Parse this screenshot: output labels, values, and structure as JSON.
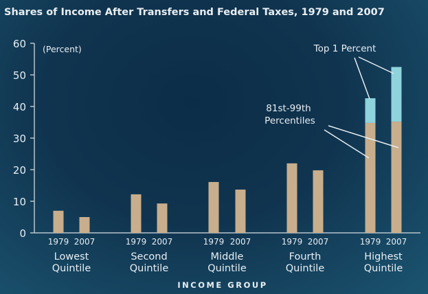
{
  "chart_data": {
    "type": "bar",
    "stacked": true,
    "title": "Shares of Income After Transfers and Federal Taxes, 1979 and 2007",
    "ylabel": "(Percent)",
    "xlabel": "INCOME GROUP",
    "ylim": [
      0,
      60
    ],
    "yticks": [
      0,
      10,
      20,
      30,
      40,
      50,
      60
    ],
    "grid": false,
    "groups": [
      "Lowest Quintile",
      "Second Quintile",
      "Middle Quintile",
      "Fourth Quintile",
      "Highest Quintile"
    ],
    "group_lines": [
      [
        "Lowest",
        "Quintile"
      ],
      [
        "Second",
        "Quintile"
      ],
      [
        "Middle",
        "Quintile"
      ],
      [
        "Fourth",
        "Quintile"
      ],
      [
        "Highest",
        "Quintile"
      ]
    ],
    "years": [
      "1979",
      "2007"
    ],
    "values": [
      [
        7.0,
        5.0
      ],
      [
        12.2,
        9.3
      ],
      [
        16.1,
        13.7
      ],
      [
        22.0,
        19.8
      ],
      [
        42.6,
        52.5
      ]
    ],
    "highest_breakdown": {
      "81st-99th Percentiles": [
        34.8,
        35.2
      ],
      "Top 1 Percent": [
        7.8,
        17.3
      ]
    },
    "annotations": [
      "Top 1 Percent",
      "81st-99th",
      "Percentiles"
    ],
    "colors": {
      "base": "#c8ae8c",
      "top1": "#8fd3dc",
      "axis": "#b8c4cc",
      "text": "#e8eef2"
    }
  }
}
